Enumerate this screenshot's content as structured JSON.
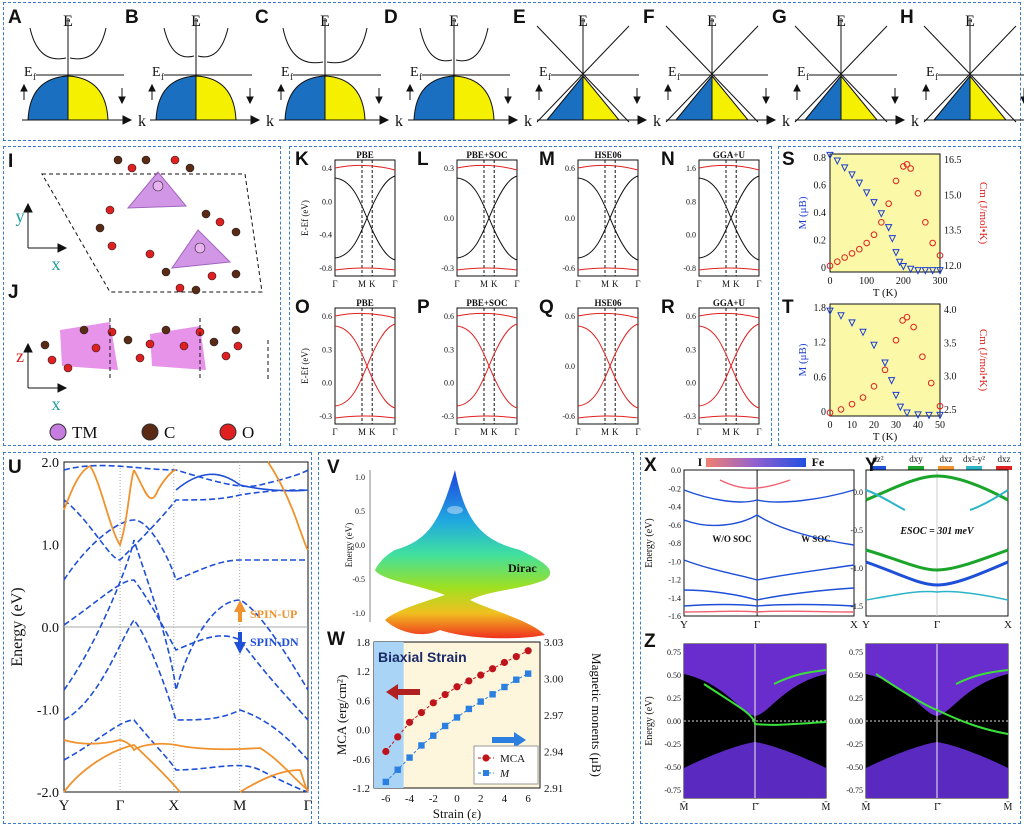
{
  "figure": {
    "panel_letters": [
      "A",
      "B",
      "C",
      "D",
      "E",
      "F",
      "G",
      "H",
      "I",
      "J",
      "K",
      "L",
      "M",
      "N",
      "O",
      "P",
      "Q",
      "R",
      "S",
      "T",
      "U",
      "V",
      "W",
      "X",
      "Y",
      "Z"
    ],
    "row1": {
      "energy_axis": "E",
      "wavevector_axis": "k",
      "fermi_label": "E",
      "fermi_sub": "f"
    },
    "structure": {
      "axis_y": "y",
      "axis_x": "x",
      "axis_z": "z",
      "legend": [
        {
          "name": "TM",
          "color": "#c77ce0"
        },
        {
          "name": "C",
          "color": "#5a2a14"
        },
        {
          "name": "O",
          "color": "#e02020"
        }
      ]
    },
    "bands_grid": {
      "titles_top": [
        "PBE",
        "PBE+SOC",
        "HSE06",
        "GGA+U"
      ],
      "titles_bottom": [
        "PBE",
        "PBE+SOC",
        "HSE06",
        "GGA+U"
      ],
      "ylabel": "E-E",
      "ylabel_sub": "f",
      "ylabel_unit": "(eV)",
      "kpoints": [
        "Γ",
        "M",
        "K",
        "Γ"
      ],
      "yticks": {
        "K": [
          "0.4",
          "0.0",
          "-0.4",
          "-0.8"
        ],
        "L": [
          "0.3",
          "0.0",
          "-0.3"
        ],
        "M": [
          "0.6",
          "0.0",
          "-0.6"
        ],
        "N": [
          "1.6",
          "0.8",
          "0.0",
          "-0.8"
        ],
        "O": [
          "0.6",
          "0.3",
          "0.0",
          "-0.3"
        ],
        "P": [
          "0.6",
          "0.3",
          "0.0",
          "-0.3"
        ],
        "Q": [
          "0.6",
          "0.0",
          "-0.6"
        ],
        "R": [
          "0.6",
          "0.3",
          "0.0",
          "-0.3"
        ]
      }
    },
    "S": {
      "xlabel": "T (K)",
      "ylabel_left": "M (μB)",
      "ylabel_right": "Cm (J/mol•K)",
      "xticks": [
        "0",
        "100",
        "200",
        "300"
      ],
      "yl": [
        "0.8",
        "0.6",
        "0.4",
        "0.2",
        "0"
      ],
      "yr": [
        "16.5",
        "15.0",
        "13.5",
        "12.0"
      ]
    },
    "T": {
      "xlabel": "T (K)",
      "ylabel_left": "M (μB)",
      "ylabel_right": "Cm (J/mol•K)",
      "xticks": [
        "0",
        "10",
        "20",
        "30",
        "40",
        "50"
      ],
      "yl": [
        "1.8",
        "1.2",
        "0.6",
        "0"
      ],
      "yr": [
        "4.0",
        "3.5",
        "3.0",
        "2.5"
      ]
    },
    "U": {
      "ylabel": "Energy (eV)",
      "yticks": [
        "2.0",
        "1.0",
        "0.0",
        "-1.0",
        "-2.0"
      ],
      "kpoints": [
        "Y",
        "Γ",
        "X",
        "M",
        "Γ"
      ],
      "legend_up": "SPIN-UP",
      "legend_dn": "SPIN-DN",
      "color_up": "#f0922e",
      "color_dn": "#1d4fd8"
    },
    "V": {
      "zlabel": "Energy (eV)",
      "annotation": "Dirac",
      "zticks": [
        "1.0",
        "0.5",
        "0.0",
        "-0.5",
        "-1.0"
      ]
    },
    "W": {
      "title": "Biaxial Strain",
      "xlabel": "Strain (ε)",
      "ylabel_left": "MCA (erg/cm²)",
      "ylabel_right": "Magnetic monents (μB)",
      "xticks": [
        "-6",
        "-4",
        "-2",
        "0",
        "2",
        "4",
        "6"
      ],
      "yl": [
        "1.8",
        "1.2",
        "0.6",
        "0.0",
        "-0.6",
        "-1.2"
      ],
      "yr": [
        "3.03",
        "3.00",
        "2.97",
        "2.94",
        "2.91"
      ],
      "legend": [
        "MCA",
        "M"
      ]
    },
    "X": {
      "colorbar_left": "I",
      "colorbar_right": "Fe",
      "ylabel": "Energy (eV)",
      "left_label": "W/O SOC",
      "right_label": "W SOC",
      "kpoints": [
        "Y",
        "Γ",
        "X"
      ],
      "yticks": [
        "0.0",
        "-0.2",
        "-0.4",
        "-0.6",
        "-0.8",
        "-1.0",
        "-1.2",
        "-1.4",
        "-1.6"
      ]
    },
    "Y": {
      "legend": [
        {
          "name": "dz²",
          "color": "#1d4fd8"
        },
        {
          "name": "dxy",
          "color": "#1aa52a"
        },
        {
          "name": "dxz",
          "color": "#f0922e"
        },
        {
          "name": "dx²-y²",
          "color": "#2bb4c8"
        },
        {
          "name": "dxz",
          "color": "#e02020"
        }
      ],
      "annotation": "ESOC = 301 meV",
      "kpoints": [
        "Y",
        "Γ",
        "X"
      ],
      "yticks": [
        "0.0",
        "-0.5",
        "-1.0",
        "-1.5"
      ]
    },
    "Z": {
      "ylabel": "Energy (eV)",
      "yticks": [
        "0.75",
        "0.50",
        "0.25",
        "0.00",
        "-0.25",
        "-0.50",
        "-0.75"
      ],
      "kpoints": [
        "M̄",
        "Γ̄",
        "M̄"
      ]
    }
  },
  "chart_data": [
    {
      "type": "scatter",
      "panel": "W",
      "title": "Biaxial Strain",
      "xlabel": "Strain (ε)",
      "ylabel": "MCA (erg/cm²)",
      "ylabel_right": "Magnetic monents (μB)",
      "xlim": [
        -7,
        7
      ],
      "ylim": [
        -1.2,
        1.8
      ],
      "ylim_right": [
        2.91,
        3.03
      ],
      "series": [
        {
          "name": "MCA",
          "axis": "left",
          "color": "#c0141c",
          "x": [
            -6,
            -5,
            -4,
            -3,
            -2,
            -1,
            0,
            1,
            2,
            3,
            4,
            5,
            6
          ],
          "y": [
            -0.45,
            -0.15,
            0.15,
            0.35,
            0.55,
            0.72,
            0.88,
            1.0,
            1.12,
            1.25,
            1.38,
            1.5,
            1.62
          ]
        },
        {
          "name": "M",
          "axis": "right",
          "color": "#2a7fe0",
          "x": [
            -6,
            -5,
            -4,
            -3,
            -2,
            -1,
            0,
            1,
            2,
            3,
            4,
            5,
            6
          ],
          "y": [
            2.915,
            2.925,
            2.935,
            2.945,
            2.953,
            2.961,
            2.968,
            2.975,
            2.981,
            2.987,
            2.993,
            2.999,
            3.004
          ]
        }
      ]
    },
    {
      "type": "scatter",
      "panel": "S",
      "xlabel": "T (K)",
      "ylabel": "M (μB)",
      "ylabel_right": "Cm (J/mol•K)",
      "xlim": [
        0,
        300
      ],
      "ylim": [
        0,
        0.85
      ],
      "ylim_right": [
        11.5,
        17.2
      ],
      "series": [
        {
          "name": "M",
          "axis": "left",
          "color": "#1d3fd0",
          "x": [
            0,
            20,
            40,
            60,
            80,
            100,
            120,
            140,
            160,
            170,
            180,
            190,
            200,
            220,
            240,
            260,
            280,
            300
          ],
          "y": [
            0.84,
            0.8,
            0.75,
            0.7,
            0.64,
            0.57,
            0.5,
            0.42,
            0.32,
            0.24,
            0.14,
            0.07,
            0.04,
            0.02,
            0.01,
            0.01,
            0.01,
            0.01
          ]
        },
        {
          "name": "Cm",
          "axis": "right",
          "color": "#e02020",
          "x": [
            0,
            20,
            40,
            60,
            80,
            100,
            120,
            140,
            160,
            180,
            200,
            210,
            220,
            240,
            260,
            280,
            300
          ],
          "y": [
            11.8,
            12.0,
            12.2,
            12.4,
            12.6,
            12.9,
            13.3,
            13.9,
            14.8,
            15.9,
            16.6,
            16.7,
            16.5,
            15.3,
            13.9,
            12.9,
            12.3
          ]
        }
      ]
    },
    {
      "type": "scatter",
      "panel": "T",
      "xlabel": "T (K)",
      "ylabel": "M (μB)",
      "ylabel_right": "Cm (J/mol•K)",
      "xlim": [
        0,
        50
      ],
      "ylim": [
        0,
        1.9
      ],
      "ylim_right": [
        2.4,
        4.1
      ],
      "series": [
        {
          "name": "M",
          "axis": "left",
          "color": "#1d3fd0",
          "x": [
            0,
            5,
            10,
            15,
            20,
            25,
            28,
            30,
            32,
            35,
            40,
            45,
            50
          ],
          "y": [
            1.78,
            1.7,
            1.58,
            1.42,
            1.2,
            0.9,
            0.6,
            0.35,
            0.15,
            0.05,
            0.02,
            0.01,
            0.01
          ]
        },
        {
          "name": "Cm",
          "axis": "right",
          "color": "#e02020",
          "x": [
            0,
            5,
            10,
            15,
            20,
            25,
            30,
            33,
            35,
            38,
            42,
            46,
            50
          ],
          "y": [
            2.45,
            2.5,
            2.58,
            2.68,
            2.85,
            3.1,
            3.55,
            3.85,
            3.9,
            3.75,
            3.3,
            2.9,
            2.55
          ]
        }
      ]
    }
  ]
}
